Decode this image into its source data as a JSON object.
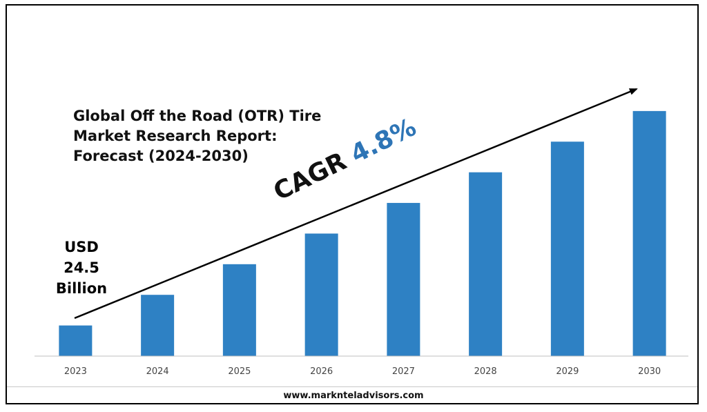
{
  "chart_data": {
    "type": "bar",
    "title": [
      "Global Off the Road (OTR) Tire",
      "Market Research Report:",
      "Forecast (2024-2030)"
    ],
    "categories": [
      "2023",
      "2024",
      "2025",
      "2026",
      "2027",
      "2028",
      "2029",
      "2030"
    ],
    "values": [
      1.0,
      2.0,
      3.0,
      4.0,
      5.0,
      6.0,
      7.0,
      8.0
    ],
    "values_note": "relative bar heights; no y-axis printed",
    "ylim": [
      0,
      8.2
    ],
    "bar_color": "#2e81c4",
    "grid": false,
    "start_annotation": [
      "USD",
      "24.5",
      "Billion"
    ],
    "cagr_label": "CAGR",
    "cagr_value": "4.8%",
    "cagr_color": "#2e75b6"
  },
  "footer": {
    "url": "www.marknteladvisors.com"
  }
}
